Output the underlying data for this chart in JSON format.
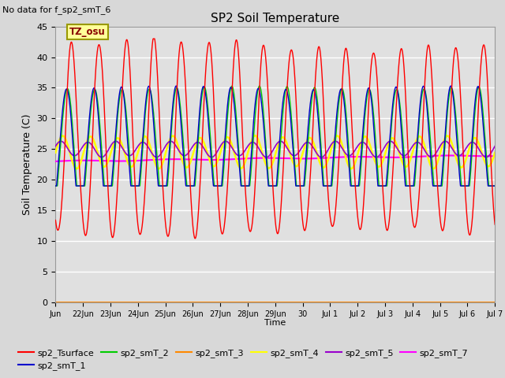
{
  "title": "SP2 Soil Temperature",
  "ylabel": "Soil Temperature (C)",
  "xlabel": "Time",
  "no_data_text": "No data for f_sp2_smT_6",
  "tz_label": "TZ_osu",
  "ylim": [
    0,
    45
  ],
  "yticks": [
    0,
    5,
    10,
    15,
    20,
    25,
    30,
    35,
    40,
    45
  ],
  "lines": {
    "sp2_Tsurface": {
      "color": "#ff0000",
      "lw": 1.0
    },
    "sp2_smT_1": {
      "color": "#0000cc",
      "lw": 1.0
    },
    "sp2_smT_2": {
      "color": "#00cc00",
      "lw": 1.0
    },
    "sp2_smT_3": {
      "color": "#ff8800",
      "lw": 1.5
    },
    "sp2_smT_4": {
      "color": "#ffff00",
      "lw": 1.8
    },
    "sp2_smT_5": {
      "color": "#9900cc",
      "lw": 1.2
    },
    "sp2_smT_7": {
      "color": "#ff00ff",
      "lw": 1.5
    }
  },
  "xtick_labels": [
    "Jun",
    "22Jun",
    "23Jun",
    "24Jun",
    "25Jun",
    "26Jun",
    "27Jun",
    "28Jun",
    "29Jun",
    "30",
    "Jul 1",
    "Jul 2",
    "Jul 3",
    "Jul 4",
    "Jul 5",
    "Jul 6",
    "Jul 7"
  ],
  "n_points": 4800,
  "end_day": 16
}
